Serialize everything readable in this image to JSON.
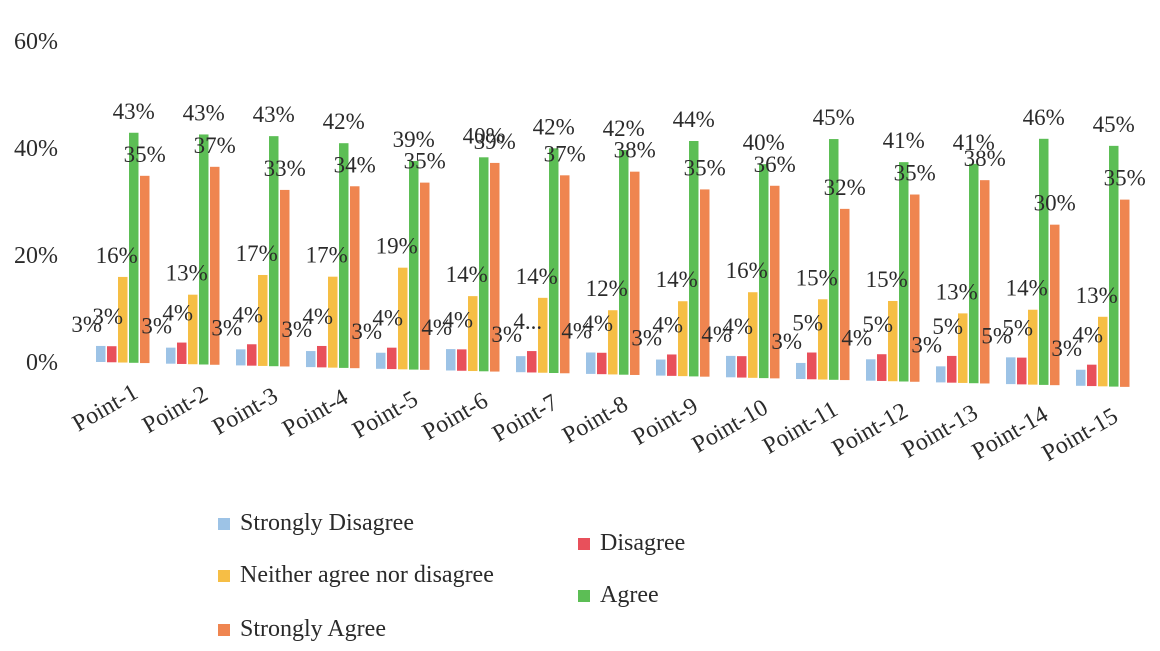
{
  "chart_data": {
    "type": "bar",
    "categories": [
      "Point-1",
      "Point-2",
      "Point-3",
      "Point-4",
      "Point-5",
      "Point-6",
      "Point-7",
      "Point-8",
      "Point-9",
      "Point-10",
      "Point-11",
      "Point-12",
      "Point-13",
      "Point-14",
      "Point-15"
    ],
    "ylim": [
      0,
      60
    ],
    "yticks": [
      "0%",
      "20%",
      "40%",
      "60%"
    ],
    "legend_position": "bottom",
    "series": [
      {
        "name": "Strongly Disagree",
        "color": "#9DC3E6",
        "values": [
          3,
          3,
          3,
          3,
          3,
          4,
          3,
          4,
          3,
          4,
          3,
          4,
          3,
          5,
          3
        ],
        "labels": [
          "3%",
          "3%",
          "3%",
          "3%",
          "3%",
          "4%",
          "3%",
          "4%",
          "3%",
          "4%",
          "3%",
          "4%",
          "3%",
          "5%",
          "3%"
        ]
      },
      {
        "name": "Disagree",
        "color": "#E8505B",
        "values": [
          3,
          4,
          4,
          4,
          4,
          4,
          4,
          4,
          4,
          4,
          5,
          5,
          5,
          5,
          4
        ],
        "labels": [
          "3%",
          "4%",
          "4%",
          "4%",
          "4%",
          "4%",
          "4...",
          "4%",
          "4%",
          "4%",
          "5%",
          "5%",
          "5%",
          "5%",
          "4%"
        ]
      },
      {
        "name": "Neither agree nor disagree",
        "color": "#F6BE45",
        "values": [
          16,
          13,
          17,
          17,
          19,
          14,
          14,
          12,
          14,
          16,
          15,
          15,
          13,
          14,
          13
        ],
        "labels": [
          "16%",
          "13%",
          "17%",
          "17%",
          "19%",
          "14%",
          "14%",
          "12%",
          "14%",
          "16%",
          "15%",
          "15%",
          "13%",
          "14%",
          "13%"
        ]
      },
      {
        "name": "Agree",
        "color": "#5CBE55",
        "values": [
          43,
          43,
          43,
          42,
          39,
          40,
          42,
          42,
          44,
          40,
          45,
          41,
          41,
          46,
          45
        ],
        "labels": [
          "43%",
          "43%",
          "43%",
          "42%",
          "39%",
          "40%",
          "42%",
          "42%",
          "44%",
          "40%",
          "45%",
          "41%",
          "41%",
          "46%",
          "45%"
        ]
      },
      {
        "name": "Strongly Agree",
        "color": "#EF8550",
        "values": [
          35,
          37,
          33,
          34,
          35,
          39,
          37,
          38,
          35,
          36,
          32,
          35,
          38,
          30,
          35
        ],
        "labels": [
          "35%",
          "37%",
          "33%",
          "34%",
          "35%",
          "39%",
          "37%",
          "38%",
          "35%",
          "36%",
          "32%",
          "35%",
          "38%",
          "30%",
          "35%"
        ]
      }
    ]
  }
}
